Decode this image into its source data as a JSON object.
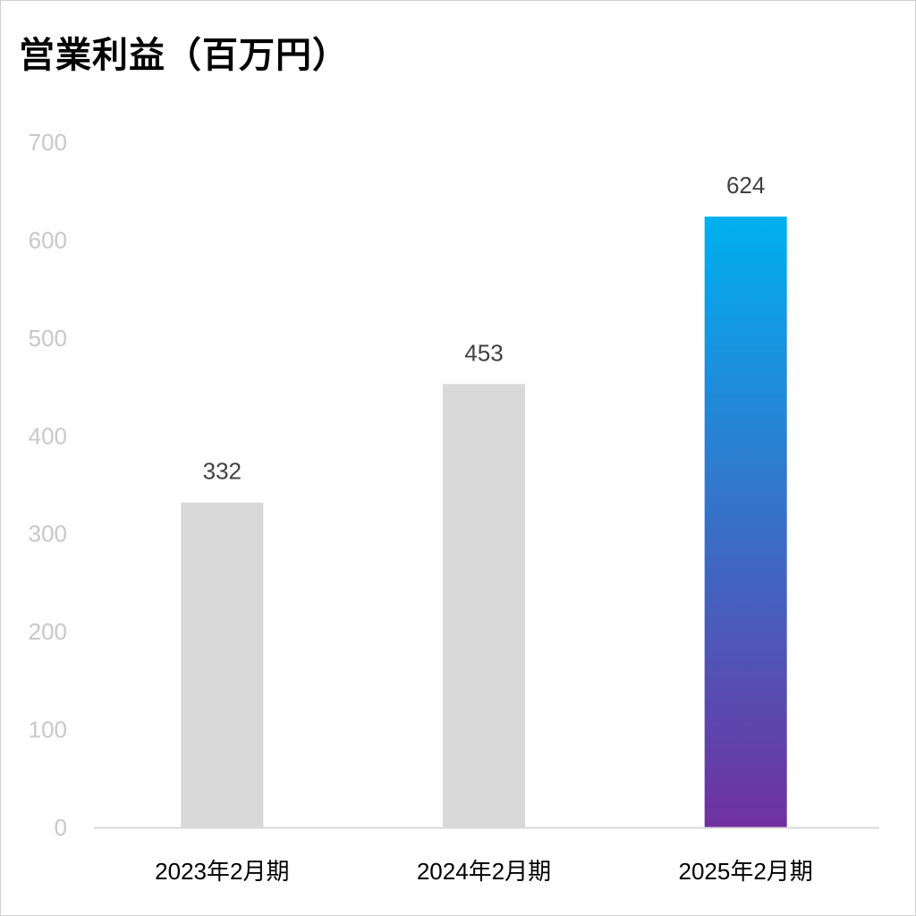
{
  "chart_data": {
    "type": "bar",
    "title": "営業利益（百万円）",
    "categories": [
      "2023年2月期",
      "2024年2月期",
      "2025年2月期"
    ],
    "values": [
      332,
      453,
      624
    ],
    "ylim": [
      0,
      700
    ],
    "yticks": [
      0,
      100,
      200,
      300,
      400,
      500,
      600,
      700
    ],
    "grid": false,
    "legend": "none",
    "colors": {
      "default_bar": "#d9d9d9",
      "highlight_gradient_top": "#00b0f0",
      "highlight_gradient_bottom": "#7030a0",
      "highlight_index": 2
    }
  }
}
